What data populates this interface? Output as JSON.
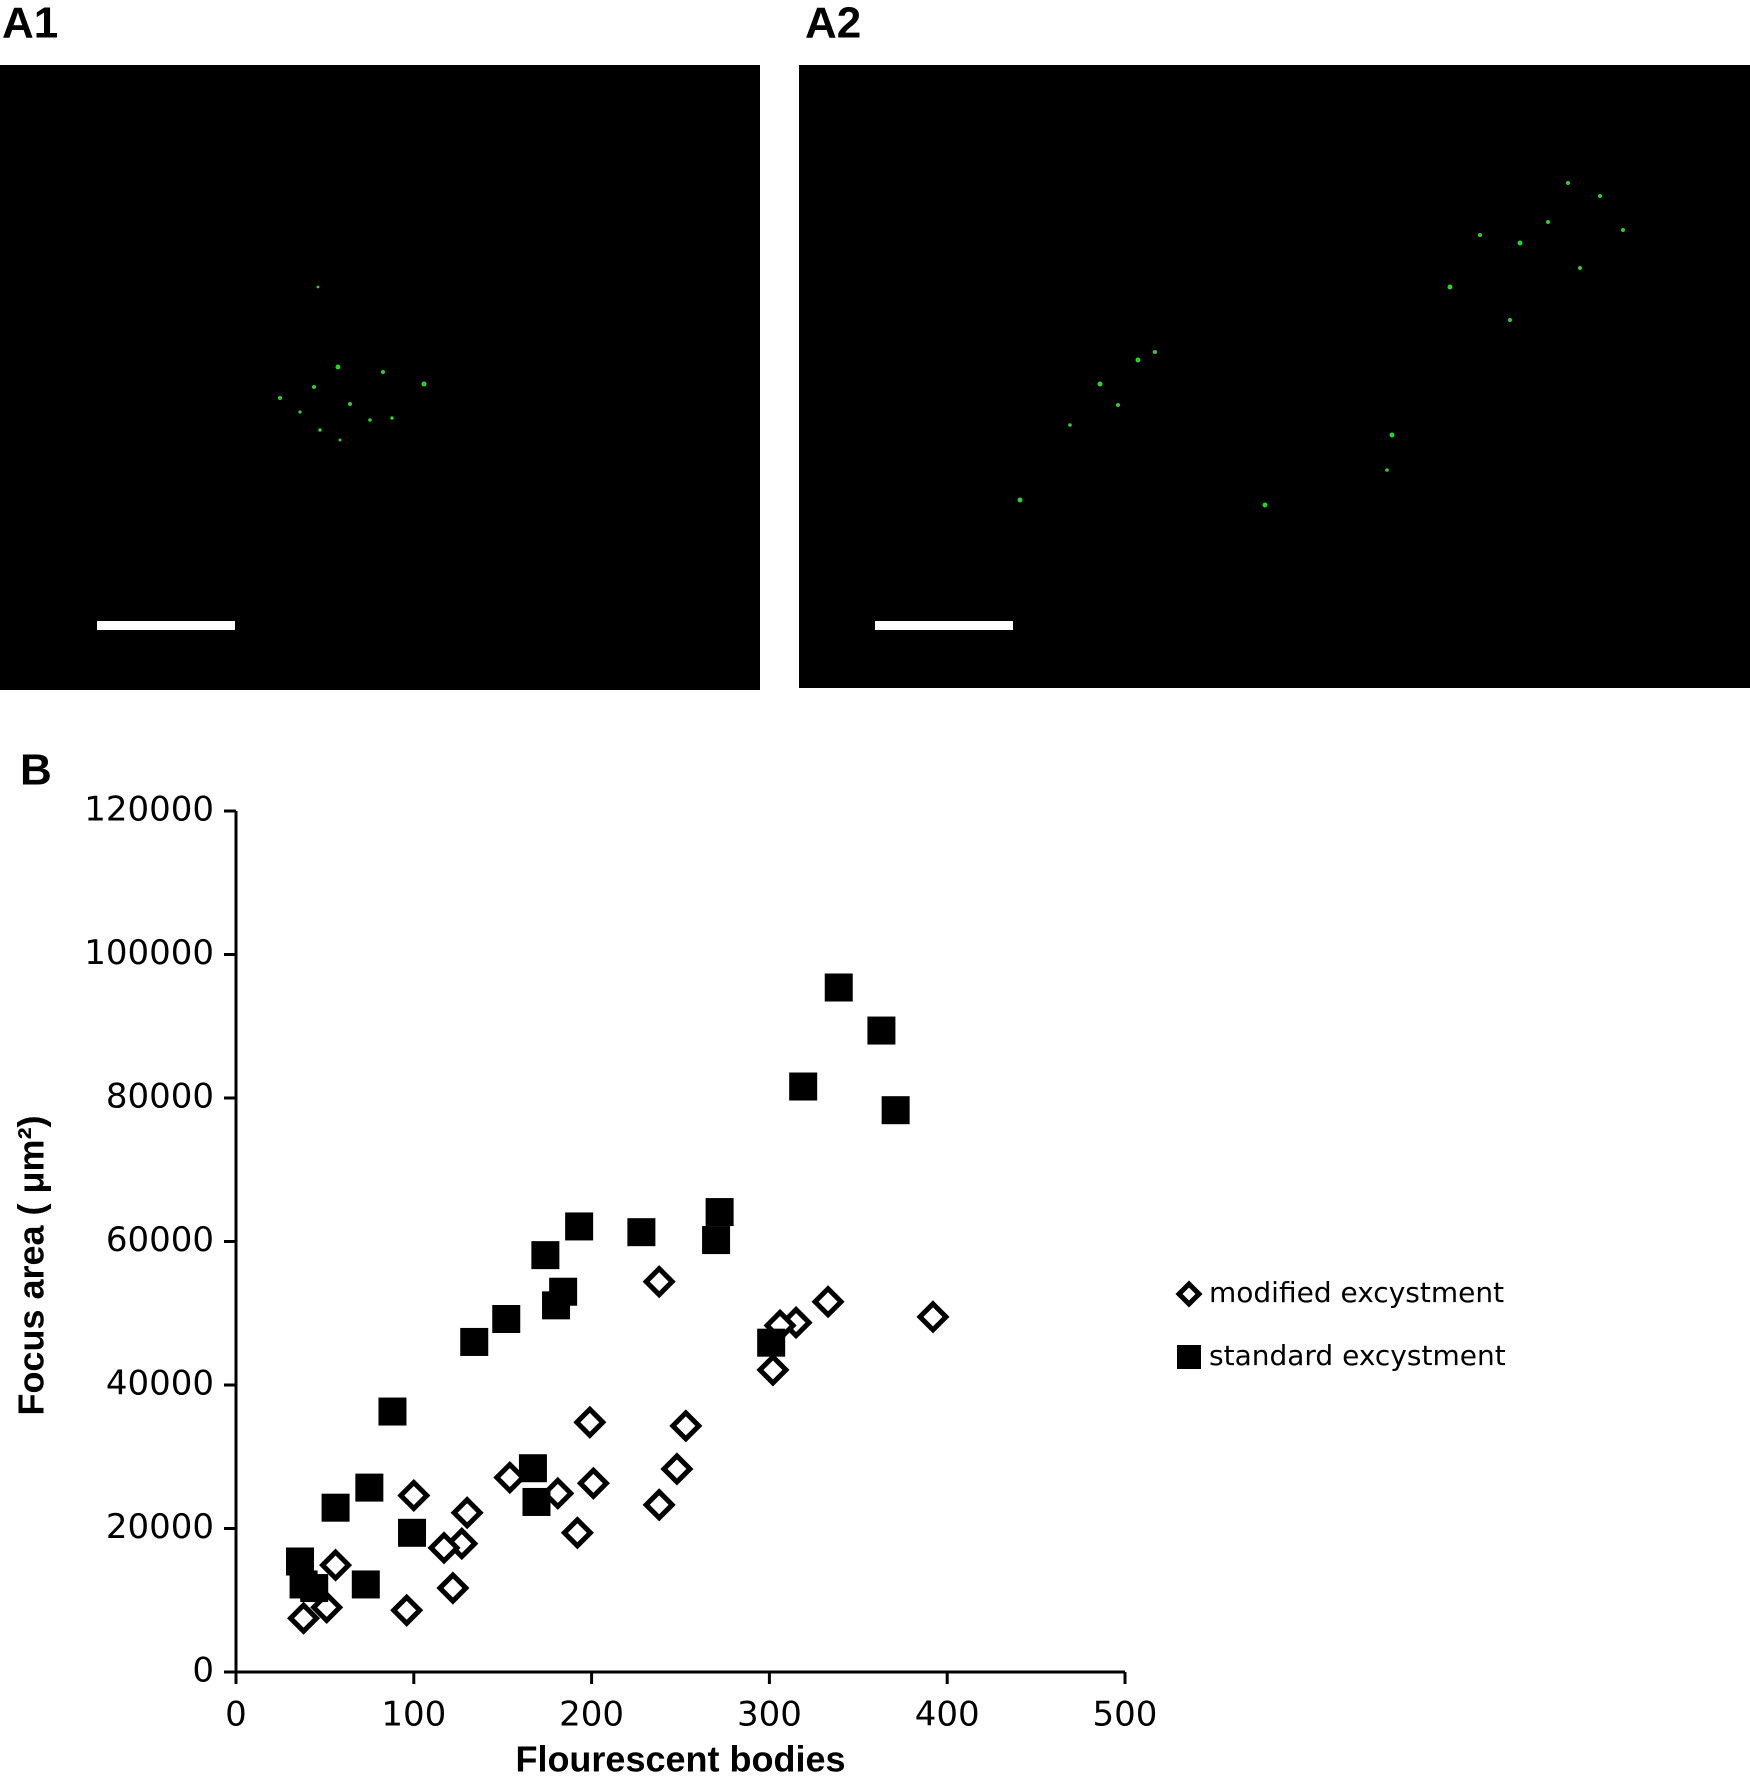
{
  "panels": {
    "a1": "A1",
    "a2": "A2",
    "b": "B"
  },
  "chart_data": {
    "type": "scatter",
    "xlabel": "Flourescent bodies",
    "ylabel": "Focus area ( μm²)",
    "xlim": [
      0,
      500
    ],
    "xticks": [
      0,
      100,
      200,
      300,
      400,
      500
    ],
    "ylim": [
      0,
      120000
    ],
    "yticks": [
      0,
      20000,
      40000,
      60000,
      80000,
      100000,
      120000
    ],
    "grid": false,
    "legend": "right",
    "series": [
      {
        "name": "modified excystment",
        "color": "#000000",
        "marker": "diamond-open",
        "x": [
          392,
          333,
          315,
          306,
          302,
          238,
          199,
          253,
          201,
          248,
          238,
          181,
          154,
          192,
          130,
          100,
          127,
          117,
          122,
          96,
          56,
          51,
          38
        ],
        "values": [
          49500,
          51600,
          48700,
          48300,
          42100,
          54400,
          34800,
          34300,
          26300,
          28300,
          23300,
          24900,
          27100,
          19400,
          22200,
          24600,
          17900,
          17300,
          11700,
          8600,
          14900,
          9000,
          7500
        ]
      },
      {
        "name": "standard excystment",
        "color": "#000000",
        "marker": "square",
        "x": [
          339,
          363,
          319,
          371,
          272,
          270,
          228,
          193,
          174,
          184,
          180,
          152,
          134,
          301,
          88,
          75,
          56,
          167,
          169,
          99,
          73,
          36,
          38,
          44
        ],
        "values": [
          95400,
          89400,
          81600,
          78300,
          64100,
          60200,
          61300,
          62100,
          58100,
          53000,
          51100,
          49200,
          46000,
          45900,
          36300,
          25700,
          22900,
          28400,
          23700,
          19400,
          12200,
          15400,
          12200,
          11700
        ]
      }
    ]
  }
}
